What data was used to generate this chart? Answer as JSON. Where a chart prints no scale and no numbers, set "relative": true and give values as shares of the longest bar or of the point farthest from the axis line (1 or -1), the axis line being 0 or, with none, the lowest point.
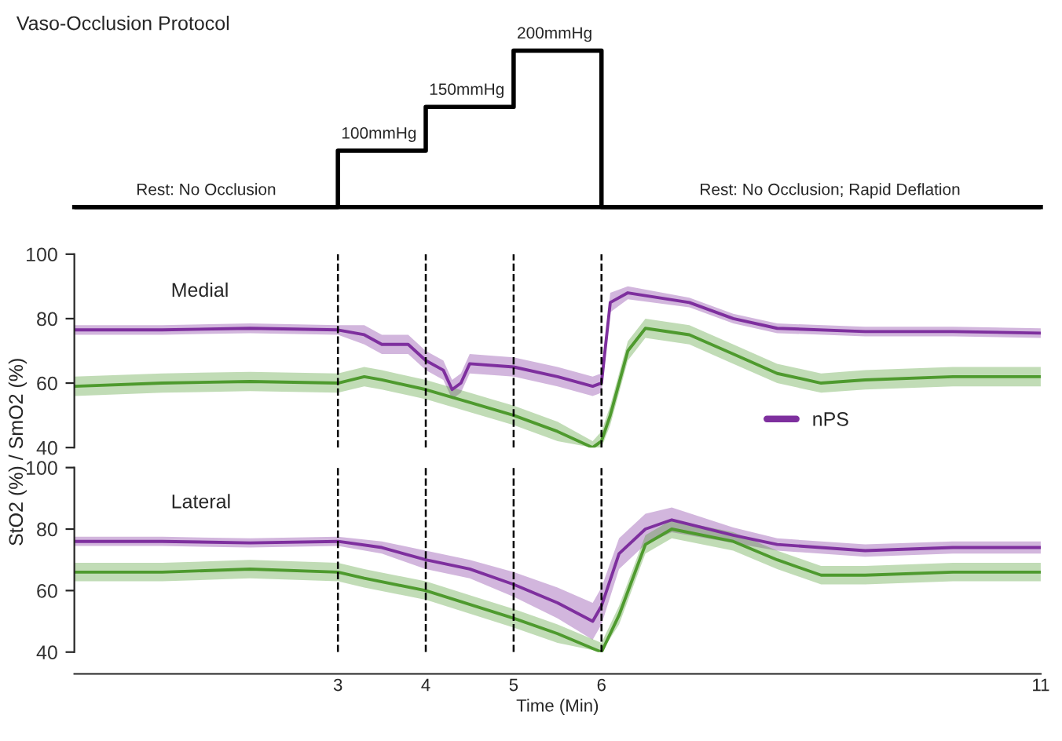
{
  "chart_data": [
    {
      "type": "step",
      "title": "Vaso-Occlusion Protocol",
      "relative": true,
      "tick_labels": false,
      "xlim": [
        0,
        11
      ],
      "series": [
        {
          "color": "#000000",
          "x": [
            0,
            3,
            4,
            5,
            6,
            11
          ],
          "values": [
            0,
            0.36,
            0.64,
            1,
            0,
            0
          ]
        }
      ],
      "annotations": [
        {
          "text": "Rest: No Occlusion",
          "x": 1.5,
          "y": 0
        },
        {
          "text": "100mmHg",
          "x": 3,
          "y": 0.36
        },
        {
          "text": "150mmHg",
          "x": 4,
          "y": 0.64
        },
        {
          "text": "200mmHg",
          "x": 5,
          "y": 1
        },
        {
          "text": "Rest: No Occlusion; Rapid Deflation",
          "x": 8.6,
          "y": 0
        }
      ]
    },
    {
      "type": "line",
      "title": "Medial",
      "ylabel": "StO2 (%) / SmO2 (%)",
      "xlim": [
        0,
        11
      ],
      "ylim": [
        40,
        100
      ],
      "yticks": [
        40,
        60,
        80,
        100
      ],
      "tick_labels": "y",
      "legend": "bottom right",
      "ref_lines": [
        {
          "axis": "x",
          "value": 3,
          "line_style": "dashed",
          "color": "#000000"
        },
        {
          "axis": "x",
          "value": 4,
          "line_style": "dashed",
          "color": "#000000"
        },
        {
          "axis": "x",
          "value": 5,
          "line_style": "dashed",
          "color": "#000000"
        },
        {
          "axis": "x",
          "value": 6,
          "line_style": "dashed",
          "color": "#000000"
        }
      ],
      "series": [
        {
          "name": "nPS",
          "color": "#7e2f9e",
          "x": [
            0,
            1,
            2,
            3,
            3.3,
            3.5,
            3.8,
            4,
            4.2,
            4.3,
            4.4,
            4.5,
            5,
            5.5,
            5.9,
            6,
            6.1,
            6.3,
            7,
            7.5,
            8,
            9,
            10,
            11
          ],
          "values": [
            76.5,
            76.5,
            77,
            76.5,
            75,
            72,
            72,
            67,
            64,
            58,
            60,
            66,
            65,
            62,
            59,
            60,
            85,
            88,
            85,
            80,
            77,
            76,
            76,
            75.5
          ],
          "lower": [
            75,
            75,
            75.5,
            75,
            72,
            69,
            69,
            64,
            61,
            55,
            57,
            63,
            62,
            59,
            56,
            57,
            82,
            86,
            83.5,
            78.5,
            75.5,
            74.5,
            74.5,
            74
          ],
          "upper": [
            78,
            78,
            78.5,
            78,
            78,
            75,
            75,
            70,
            67,
            61,
            63,
            69,
            68,
            65,
            62,
            63,
            88,
            90,
            86.5,
            81.5,
            78.5,
            77.5,
            77.5,
            77
          ]
        },
        {
          "color": "#4e9a2e",
          "x": [
            0,
            1,
            2,
            3,
            3.3,
            3.5,
            4,
            4.5,
            5,
            5.5,
            5.9,
            6,
            6.1,
            6.3,
            6.5,
            7,
            7.5,
            8,
            8.5,
            9,
            10,
            11
          ],
          "values": [
            59,
            60,
            60.5,
            60,
            62,
            61,
            58,
            54,
            50,
            45,
            40,
            42,
            50,
            70,
            77,
            75,
            69,
            63,
            60,
            61,
            62,
            62
          ],
          "lower": [
            56,
            57,
            57.5,
            57,
            59,
            58,
            55,
            51,
            47,
            42,
            40,
            40,
            47,
            67,
            74,
            72,
            66,
            60,
            57,
            58,
            59,
            59
          ],
          "upper": [
            62,
            63,
            63.5,
            63,
            65,
            64,
            61,
            57,
            53,
            48,
            42,
            45,
            53,
            73,
            80,
            78,
            72,
            66,
            63,
            64,
            65,
            65
          ]
        }
      ]
    },
    {
      "type": "line",
      "title": "Lateral",
      "xlabel": "Time (Min)",
      "xlim": [
        0,
        11
      ],
      "ylim": [
        40,
        100
      ],
      "xticks": [
        3,
        4,
        5,
        6,
        11
      ],
      "yticks": [
        40,
        60,
        80,
        100
      ],
      "ref_lines": [
        {
          "axis": "x",
          "value": 3,
          "line_style": "dashed",
          "color": "#000000"
        },
        {
          "axis": "x",
          "value": 4,
          "line_style": "dashed",
          "color": "#000000"
        },
        {
          "axis": "x",
          "value": 5,
          "line_style": "dashed",
          "color": "#000000"
        },
        {
          "axis": "x",
          "value": 6,
          "line_style": "dashed",
          "color": "#000000"
        }
      ],
      "series": [
        {
          "color": "#7e2f9e",
          "x": [
            0,
            1,
            2,
            3,
            3.5,
            4,
            4.5,
            5,
            5.5,
            5.9,
            6,
            6.2,
            6.5,
            6.8,
            7.5,
            8,
            9,
            10,
            11
          ],
          "values": [
            76,
            76,
            75.5,
            76,
            74,
            70,
            67,
            62,
            56,
            50,
            55,
            72,
            80,
            83,
            78,
            75,
            73,
            74,
            74
          ],
          "lower": [
            74.5,
            74.5,
            74,
            74.5,
            72,
            67,
            64,
            58,
            51,
            44,
            49,
            67,
            75,
            79,
            75.5,
            73,
            71,
            72,
            72
          ],
          "upper": [
            77.5,
            77.5,
            77,
            77.5,
            76,
            73,
            70,
            66,
            61,
            56,
            61,
            77,
            85,
            87,
            80.5,
            77,
            75,
            76,
            76
          ]
        },
        {
          "color": "#4e9a2e",
          "x": [
            0,
            1,
            2,
            3,
            3.3,
            4,
            5,
            5.5,
            6,
            6.2,
            6.5,
            6.8,
            7.5,
            8,
            8.5,
            9,
            10,
            11
          ],
          "values": [
            66,
            66,
            67,
            66,
            64,
            60,
            51,
            46,
            40,
            52,
            75,
            80,
            76,
            70,
            65,
            65,
            66,
            66
          ],
          "lower": [
            63,
            63,
            64,
            63,
            61,
            57,
            48,
            43,
            40,
            49,
            72,
            77,
            73,
            67,
            62,
            62,
            63,
            63
          ],
          "upper": [
            69,
            69,
            70,
            69,
            67,
            63,
            54,
            49,
            43,
            55,
            78,
            83,
            79,
            73,
            68,
            68,
            69,
            69
          ]
        }
      ]
    }
  ]
}
